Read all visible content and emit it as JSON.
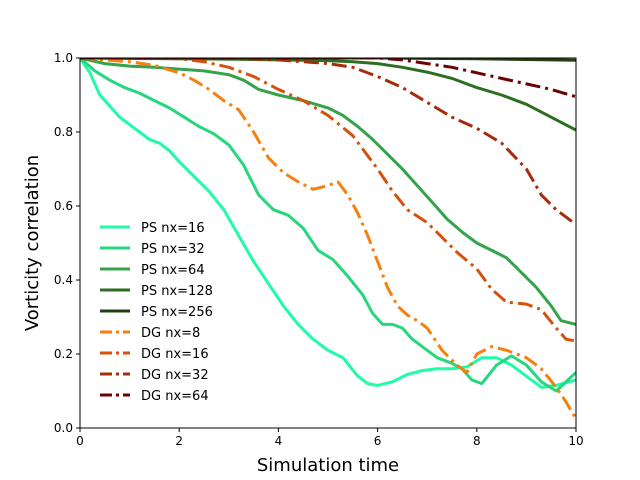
{
  "chart_data": {
    "type": "line",
    "title": "",
    "xlabel": "Simulation time",
    "ylabel": "Vorticity correlation",
    "xlim": [
      0,
      10
    ],
    "ylim": [
      0.0,
      1.0
    ],
    "xticks": [
      "0",
      "2",
      "4",
      "6",
      "8",
      "10"
    ],
    "yticks": [
      "0.0",
      "0.2",
      "0.4",
      "0.6",
      "0.8",
      "1.0"
    ],
    "grid": false,
    "legend_position": "lower-left",
    "series": [
      {
        "name": "PS nx=16",
        "color": "#1ffca8",
        "dash": "solid",
        "x": [
          0,
          0.2,
          0.4,
          0.6,
          0.8,
          1.0,
          1.2,
          1.4,
          1.6,
          1.8,
          2.0,
          2.3,
          2.6,
          2.9,
          3.2,
          3.5,
          3.8,
          4.1,
          4.4,
          4.7,
          5.0,
          5.3,
          5.6,
          5.8,
          6.0,
          6.3,
          6.6,
          6.9,
          7.2,
          7.5,
          7.8,
          8.1,
          8.4,
          8.7,
          9.0,
          9.3,
          9.6,
          10.0
        ],
        "y": [
          1.0,
          0.96,
          0.9,
          0.87,
          0.84,
          0.82,
          0.8,
          0.78,
          0.77,
          0.75,
          0.72,
          0.68,
          0.64,
          0.59,
          0.52,
          0.45,
          0.39,
          0.33,
          0.28,
          0.24,
          0.21,
          0.19,
          0.14,
          0.12,
          0.115,
          0.125,
          0.145,
          0.155,
          0.16,
          0.16,
          0.165,
          0.19,
          0.19,
          0.17,
          0.14,
          0.11,
          0.115,
          0.13
        ]
      },
      {
        "name": "PS nx=32",
        "color": "#26d77d",
        "dash": "solid",
        "x": [
          0,
          0.3,
          0.6,
          0.9,
          1.2,
          1.5,
          1.8,
          2.1,
          2.4,
          2.7,
          3.0,
          3.3,
          3.6,
          3.9,
          4.2,
          4.5,
          4.8,
          5.1,
          5.4,
          5.7,
          5.9,
          6.1,
          6.3,
          6.5,
          6.7,
          6.9,
          7.2,
          7.5,
          7.7,
          7.9,
          8.1,
          8.4,
          8.7,
          9.0,
          9.3,
          9.6,
          10.0
        ],
        "y": [
          1.0,
          0.965,
          0.94,
          0.92,
          0.905,
          0.885,
          0.865,
          0.84,
          0.815,
          0.795,
          0.765,
          0.71,
          0.63,
          0.59,
          0.575,
          0.54,
          0.48,
          0.455,
          0.41,
          0.36,
          0.31,
          0.28,
          0.28,
          0.27,
          0.24,
          0.22,
          0.19,
          0.175,
          0.16,
          0.13,
          0.12,
          0.17,
          0.195,
          0.17,
          0.125,
          0.1,
          0.15
        ]
      },
      {
        "name": "PS nx=64",
        "color": "#34a34a",
        "dash": "solid",
        "x": [
          0,
          0.5,
          1.0,
          1.5,
          2.0,
          2.5,
          3.0,
          3.3,
          3.6,
          4.0,
          4.5,
          5.0,
          5.3,
          5.6,
          5.9,
          6.2,
          6.5,
          6.8,
          7.1,
          7.4,
          7.7,
          8.0,
          8.3,
          8.6,
          8.9,
          9.2,
          9.5,
          9.7,
          10.0
        ],
        "y": [
          1.0,
          0.985,
          0.978,
          0.975,
          0.97,
          0.965,
          0.955,
          0.94,
          0.915,
          0.9,
          0.885,
          0.865,
          0.845,
          0.815,
          0.78,
          0.74,
          0.7,
          0.655,
          0.61,
          0.565,
          0.53,
          0.5,
          0.48,
          0.46,
          0.42,
          0.38,
          0.33,
          0.29,
          0.28
        ]
      },
      {
        "name": "PS nx=128",
        "color": "#2d6e22",
        "dash": "solid",
        "x": [
          0,
          1,
          2,
          3,
          4,
          5,
          5.5,
          6,
          6.5,
          7,
          7.5,
          8,
          8.5,
          9,
          9.5,
          10
        ],
        "y": [
          1.0,
          0.999,
          0.998,
          0.997,
          0.995,
          0.993,
          0.99,
          0.985,
          0.975,
          0.962,
          0.945,
          0.92,
          0.9,
          0.875,
          0.84,
          0.805
        ]
      },
      {
        "name": "PS nx=256",
        "color": "#1f4010",
        "dash": "solid",
        "x": [
          0,
          2,
          4,
          6,
          7,
          8,
          9,
          10
        ],
        "y": [
          1.0,
          1.0,
          1.0,
          1.0,
          0.999,
          0.998,
          0.996,
          0.994
        ]
      },
      {
        "name": "DG nx=8",
        "color": "#f67f10",
        "dash": "dashdot",
        "x": [
          0,
          0.5,
          1.0,
          1.5,
          2.0,
          2.3,
          2.6,
          2.9,
          3.2,
          3.5,
          3.8,
          4.1,
          4.4,
          4.7,
          5.0,
          5.2,
          5.4,
          5.6,
          5.8,
          6.0,
          6.2,
          6.4,
          6.6,
          6.8,
          7.0,
          7.3,
          7.6,
          7.8,
          8.0,
          8.3,
          8.6,
          9.0,
          9.3,
          9.6,
          9.8,
          10.0
        ],
        "y": [
          1.0,
          0.995,
          0.99,
          0.98,
          0.96,
          0.94,
          0.915,
          0.885,
          0.86,
          0.8,
          0.73,
          0.69,
          0.665,
          0.645,
          0.655,
          0.665,
          0.63,
          0.58,
          0.52,
          0.45,
          0.38,
          0.33,
          0.305,
          0.29,
          0.27,
          0.21,
          0.17,
          0.15,
          0.2,
          0.22,
          0.21,
          0.19,
          0.16,
          0.11,
          0.07,
          0.025
        ]
      },
      {
        "name": "DG nx=16",
        "color": "#d4520e",
        "dash": "dashdot",
        "x": [
          0,
          1,
          2,
          2.5,
          3.0,
          3.5,
          4.0,
          4.5,
          5.0,
          5.5,
          6.0,
          6.3,
          6.6,
          7.0,
          7.3,
          7.6,
          8.0,
          8.3,
          8.6,
          9.0,
          9.3,
          9.6,
          9.8,
          10.0
        ],
        "y": [
          1.0,
          1.0,
          0.998,
          0.99,
          0.975,
          0.95,
          0.915,
          0.885,
          0.845,
          0.79,
          0.7,
          0.64,
          0.59,
          0.555,
          0.515,
          0.475,
          0.43,
          0.375,
          0.34,
          0.335,
          0.32,
          0.27,
          0.24,
          0.235
        ]
      },
      {
        "name": "DG nx=32",
        "color": "#a32d0c",
        "dash": "dashdot",
        "x": [
          0,
          1,
          2,
          3,
          4,
          5,
          5.5,
          6.0,
          6.5,
          7.0,
          7.5,
          8.0,
          8.5,
          9.0,
          9.3,
          9.6,
          10.0
        ],
        "y": [
          1.0,
          1.0,
          1.0,
          1.0,
          0.995,
          0.985,
          0.975,
          0.95,
          0.92,
          0.88,
          0.84,
          0.81,
          0.77,
          0.7,
          0.63,
          0.59,
          0.55
        ]
      },
      {
        "name": "DG nx=64",
        "color": "#6b0202",
        "dash": "dashdot",
        "x": [
          0,
          2,
          4,
          6,
          6.5,
          7.0,
          7.5,
          8.0,
          8.5,
          9.0,
          9.5,
          10.0
        ],
        "y": [
          1.0,
          1.0,
          1.0,
          1.0,
          0.995,
          0.985,
          0.975,
          0.96,
          0.945,
          0.93,
          0.915,
          0.895
        ]
      }
    ]
  }
}
